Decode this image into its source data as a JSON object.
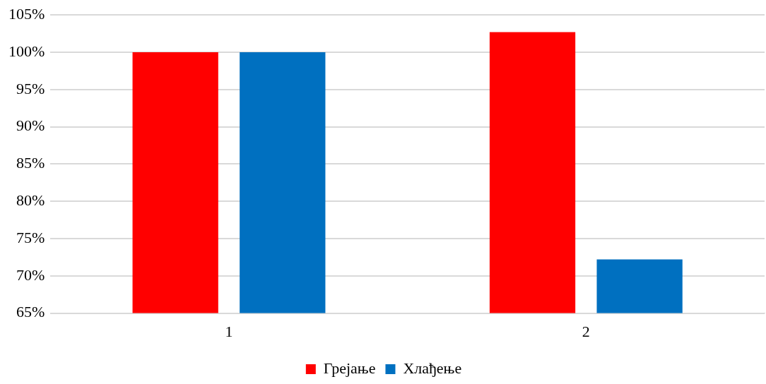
{
  "chart_data": {
    "type": "bar",
    "categories": [
      "1",
      "2"
    ],
    "series": [
      {
        "name": "Грејање",
        "color": "#ff0000",
        "values": [
          100,
          102.7
        ]
      },
      {
        "name": "Хлађење",
        "color": "#0070c0",
        "values": [
          100,
          72.2
        ]
      }
    ],
    "ylim": [
      65,
      105
    ],
    "yticks": [
      {
        "value": 65,
        "label": "65%"
      },
      {
        "value": 70,
        "label": "70%"
      },
      {
        "value": 75,
        "label": "75%"
      },
      {
        "value": 80,
        "label": "80%"
      },
      {
        "value": 85,
        "label": "85%"
      },
      {
        "value": 90,
        "label": "90%"
      },
      {
        "value": 95,
        "label": "95%"
      },
      {
        "value": 100,
        "label": "100%"
      },
      {
        "value": 105,
        "label": "105%"
      }
    ],
    "grid": "y",
    "legend": "bottom"
  }
}
